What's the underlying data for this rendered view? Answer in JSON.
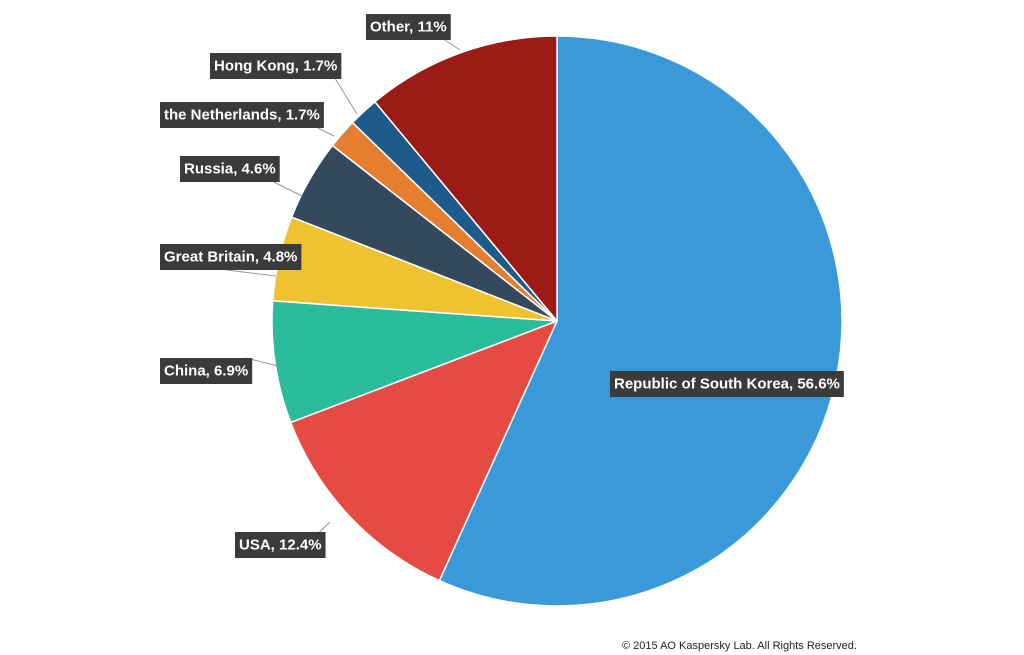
{
  "chart_data": {
    "type": "pie",
    "start_angle_deg": 0,
    "direction": "clockwise",
    "legend": "none",
    "slices": [
      {
        "label": "Republic of South Korea, 56.6%",
        "value": 56.6,
        "color": "#3a9ad9"
      },
      {
        "label": "USA, 12.4%",
        "value": 12.4,
        "color": "#e54b42"
      },
      {
        "label": "China, 6.9%",
        "value": 6.9,
        "color": "#2bbc9b"
      },
      {
        "label": "Great Britain, 4.8%",
        "value": 4.8,
        "color": "#efc230"
      },
      {
        "label": "Russia, 4.6%",
        "value": 4.6,
        "color": "#34495e"
      },
      {
        "label": "the Netherlands, 1.7%",
        "value": 1.7,
        "color": "#e67e30"
      },
      {
        "label": "Hong Kong, 1.7%",
        "value": 1.7,
        "color": "#1f5b8a"
      },
      {
        "label": "Other, 11%",
        "value": 11.0,
        "color": "#9b1b15"
      }
    ]
  },
  "footer": {
    "copyright": "© 2015 AO Kaspersky Lab. All Rights Reserved."
  },
  "colors": {
    "label_background": "#3b3b3b",
    "label_text": "#ffffff",
    "leader_line": "#999999"
  }
}
